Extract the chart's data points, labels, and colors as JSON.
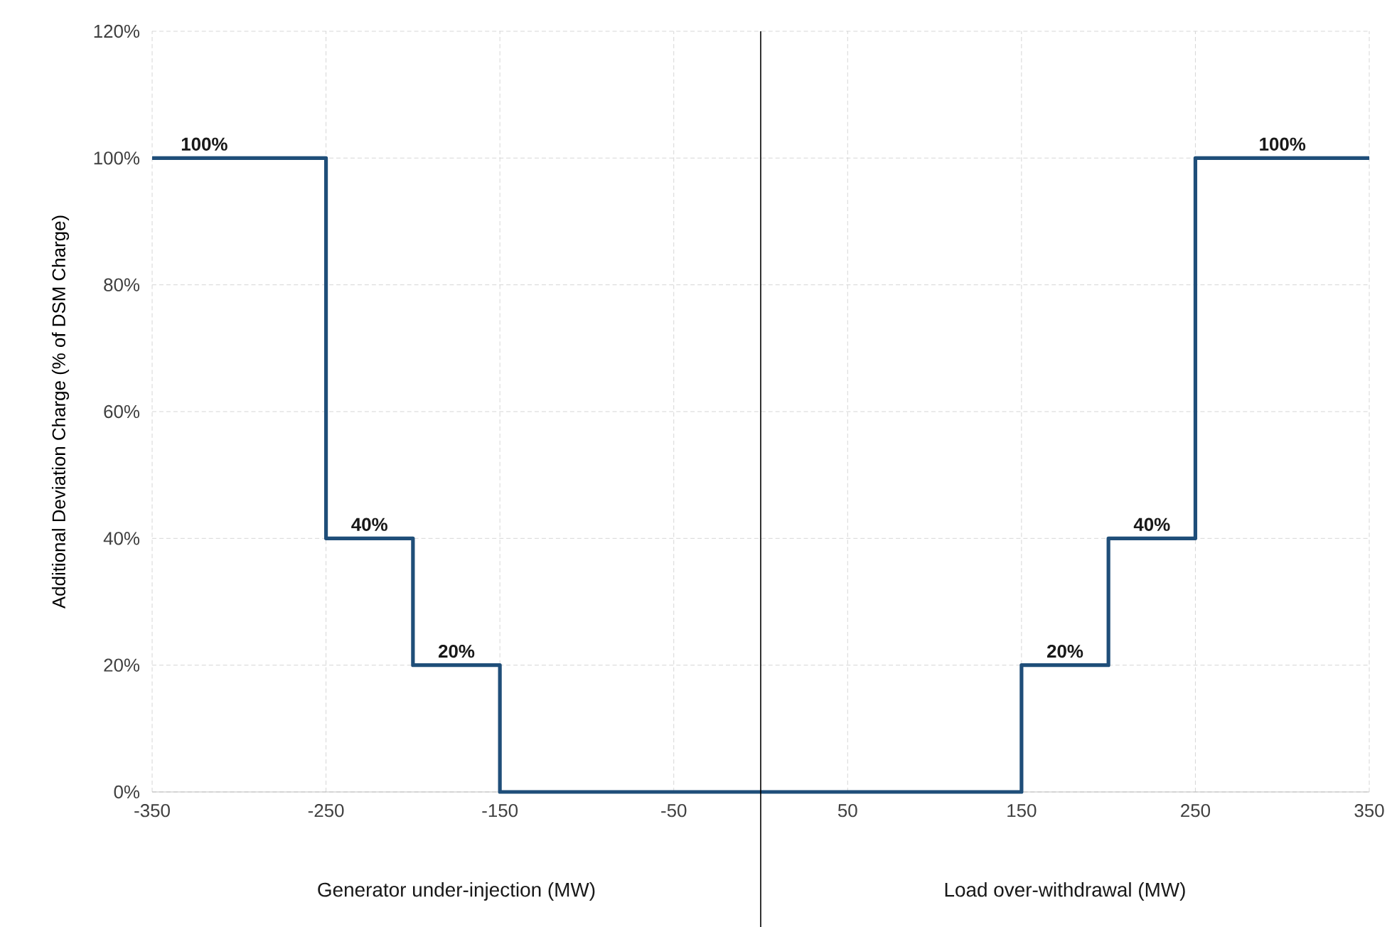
{
  "chart_data": {
    "type": "line",
    "ylabel": "Additional Deviation Charge (% of DSM Charge)",
    "x": [
      -350,
      -250,
      -250,
      -200,
      -200,
      -150,
      -150,
      150,
      150,
      200,
      200,
      250,
      250,
      350
    ],
    "series": [
      {
        "color": "#1f4e79",
        "values": [
          100,
          100,
          40,
          40,
          20,
          20,
          0,
          0,
          20,
          20,
          40,
          40,
          100,
          100
        ]
      }
    ],
    "xlim": [
      -350,
      350
    ],
    "xticks": [
      -350,
      -250,
      -150,
      -50,
      50,
      150,
      250,
      350
    ],
    "ylim": [
      0,
      120
    ],
    "yticks": [
      {
        "value": 0,
        "label": "0%"
      },
      {
        "value": 20,
        "label": "20%"
      },
      {
        "value": 40,
        "label": "40%"
      },
      {
        "value": 60,
        "label": "60%"
      },
      {
        "value": 80,
        "label": "80%"
      },
      {
        "value": 100,
        "label": "100%"
      },
      {
        "value": 120,
        "label": "120%"
      }
    ],
    "grid": true,
    "marker": "none",
    "line_style": "solid",
    "ref_lines": [
      {
        "axis": "x",
        "value": 0,
        "color": "#000000"
      }
    ],
    "annotations": [
      {
        "text": "**100%**",
        "x": -320,
        "y": 100
      },
      {
        "text": "**40%**",
        "x": -225,
        "y": 40
      },
      {
        "text": "**20%**",
        "x": -175,
        "y": 20
      },
      {
        "text": "**20%**",
        "x": 175,
        "y": 20
      },
      {
        "text": "**40%**",
        "x": 225,
        "y": 40
      },
      {
        "text": "**100%**",
        "x": 300,
        "y": 100
      },
      "Generator under-injection (MW)",
      "Load over-withdrawal (MW)"
    ]
  }
}
